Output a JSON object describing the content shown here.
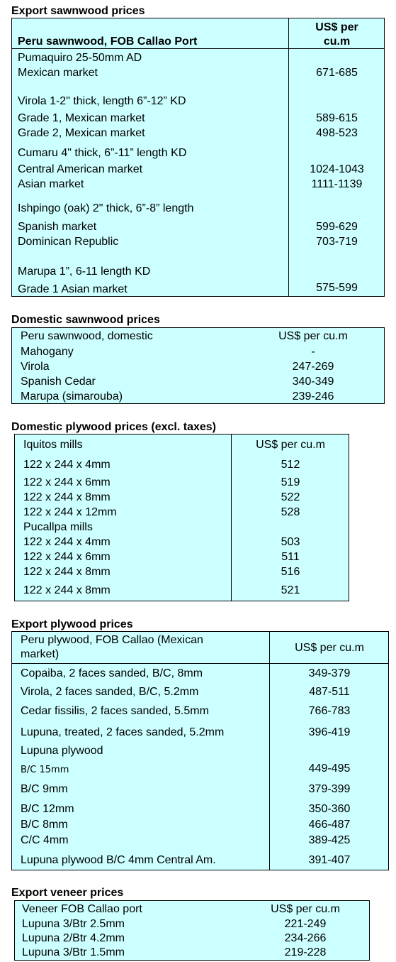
{
  "export_sawnwood": {
    "heading": "Export sawnwood prices",
    "header_left": "Peru sawnwood, FOB Callao Port",
    "header_right_1": "US$ per",
    "header_right_2": "cu.m",
    "rows": [
      {
        "label": "Pumaquiro 25-50mm AD",
        "value": ""
      },
      {
        "label": "Mexican market",
        "value": "671-685"
      },
      {
        "label": "Virola  1-2\" thick, length  6”-12” KD",
        "value": ""
      },
      {
        "label": "Grade 1, Mexican market",
        "value": "589-615"
      },
      {
        "label": "Grade 2, Mexican market",
        "value": "498-523"
      },
      {
        "label": "Cumaru 4\" thick, 6”-11” length KD",
        "value": ""
      },
      {
        "label": "Central American market",
        "value": "1024-1043"
      },
      {
        "label": "Asian market",
        "value": "1111-1139"
      },
      {
        "label": "Ishpingo (oak) 2\" thick, 6”-8” length",
        "value": ""
      },
      {
        "label": "Spanish market",
        "value": "599-629"
      },
      {
        "label": "Dominican Republic",
        "value": "703-719"
      },
      {
        "label": "Marupa  1”, 6-11 length KD",
        "value": ""
      },
      {
        "label": "Grade 1 Asian market",
        "value": "575-599"
      }
    ]
  },
  "domestic_sawnwood": {
    "heading": "Domestic sawnwood prices",
    "header_left": "Peru sawnwood, domestic",
    "header_right": "US$ per cu.m",
    "rows": [
      {
        "label": "Mahogany",
        "value": "-"
      },
      {
        "label": "Virola",
        "value": "247-269"
      },
      {
        "label": "Spanish Cedar",
        "value": "340-349"
      },
      {
        "label": "Marupa (simarouba)",
        "value": "239-246"
      }
    ]
  },
  "domestic_plywood": {
    "heading": "Domestic plywood prices (excl. taxes)",
    "header_left": "Iquitos mills",
    "header_right": "US$ per cu.m",
    "rows": [
      {
        "label": "122 x 244 x 4mm",
        "value": "512"
      },
      {
        "label": "122 x 244 x 6mm",
        "value": "519"
      },
      {
        "label": "122 x 244 x 8mm",
        "value": "522"
      },
      {
        "label": "122 x 244 x 12mm",
        "value": "528"
      },
      {
        "label": "Pucallpa mills",
        "value": ""
      },
      {
        "label": "122 x 244 x 4mm",
        "value": "503"
      },
      {
        "label": "122 x 244 x 6mm",
        "value": "511"
      },
      {
        "label": "122 x 244 x 8mm",
        "value": "516"
      },
      {
        "label": "122 x 244 x 8mm",
        "value": "521"
      }
    ]
  },
  "export_plywood": {
    "heading": "Export plywood prices",
    "header_left_1": "Peru plywood, FOB Callao (Mexican",
    "header_left_2": "market)",
    "header_right": "US$ per cu.m",
    "rows": [
      {
        "label": "Copaiba, 2 faces sanded, B/C, 8mm",
        "value": "349-379"
      },
      {
        "label": "Virola, 2 faces sanded, B/C, 5.2mm",
        "value": "487-511"
      },
      {
        "label": "Cedar fissilis, 2 faces sanded, 5.5mm",
        "value": "766-783"
      },
      {
        "label": "Lupuna, treated, 2 faces sanded, 5.2mm",
        "value": "396-419"
      },
      {
        "label": "Lupuna plywood",
        "value": ""
      },
      {
        "label": "B/C 15mm",
        "value": "449-495"
      },
      {
        "label": "B/C 9mm",
        "value": "379-399"
      },
      {
        "label": "B/C 12mm",
        "value": "350-360"
      },
      {
        "label": "B/C 8mm",
        "value": "466-487"
      },
      {
        "label": "C/C 4mm",
        "value": "389-425"
      },
      {
        "label": "Lupuna plywood B/C 4mm Central Am.",
        "value": "391-407"
      }
    ]
  },
  "export_veneer": {
    "heading": "Export veneer prices",
    "header_left": "Veneer  FOB Callao port",
    "header_right": "US$ per cu.m",
    "rows": [
      {
        "label": "Lupuna 3/Btr 2.5mm",
        "value": "221-249"
      },
      {
        "label": "Lupuna 2/Btr 4.2mm",
        "value": "234-266"
      },
      {
        "label": "Lupuna 3/Btr 1.5mm",
        "value": "219-228"
      }
    ]
  }
}
